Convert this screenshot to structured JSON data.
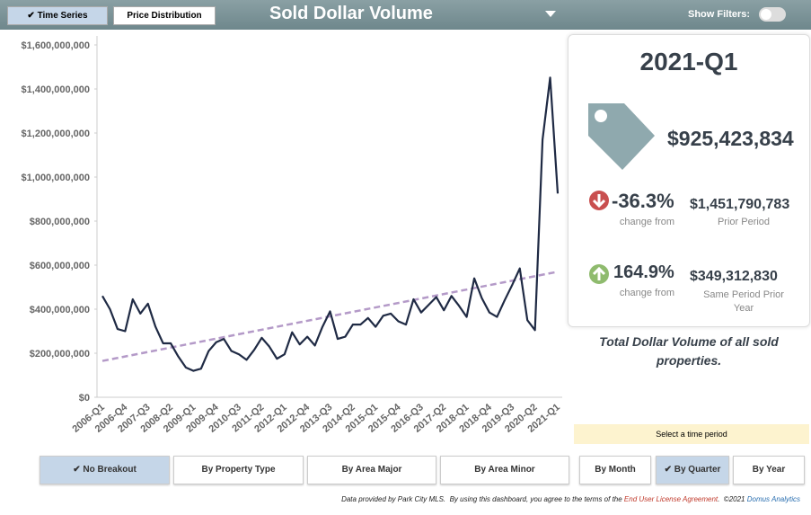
{
  "header": {
    "tabs": [
      "Time Series",
      "Price Distribution"
    ],
    "title": "Sold Dollar Volume",
    "filter_label": "Show Filters:"
  },
  "chart_data": {
    "type": "line",
    "categories": [
      "2006-Q1",
      null,
      null,
      "2006-Q4",
      null,
      null,
      "2007-Q3",
      null,
      null,
      "2008-Q2",
      null,
      null,
      "2009-Q1",
      null,
      null,
      "2009-Q4",
      null,
      null,
      "2010-Q3",
      null,
      null,
      "2011-Q2",
      null,
      null,
      "2012-Q1",
      null,
      null,
      "2012-Q4",
      null,
      null,
      "2013-Q3",
      null,
      null,
      "2014-Q2",
      null,
      null,
      "2015-Q1",
      null,
      null,
      "2015-Q4",
      null,
      null,
      "2016-Q3",
      null,
      null,
      "2017-Q2",
      null,
      null,
      "2018-Q1",
      null,
      null,
      "2018-Q4",
      null,
      null,
      "2019-Q3",
      null,
      null,
      "2020-Q2",
      null,
      null,
      "2021-Q1"
    ],
    "series": [
      {
        "color": "#1f2a44",
        "values": [
          460000000,
          400000000,
          310000000,
          300000000,
          445000000,
          380000000,
          425000000,
          320000000,
          245000000,
          245000000,
          185000000,
          135000000,
          120000000,
          130000000,
          210000000,
          250000000,
          265000000,
          210000000,
          195000000,
          170000000,
          215000000,
          270000000,
          230000000,
          175000000,
          195000000,
          295000000,
          240000000,
          275000000,
          235000000,
          320000000,
          390000000,
          265000000,
          275000000,
          330000000,
          330000000,
          360000000,
          320000000,
          370000000,
          380000000,
          345000000,
          330000000,
          445000000,
          385000000,
          420000000,
          455000000,
          395000000,
          460000000,
          415000000,
          365000000,
          540000000,
          450000000,
          385000000,
          365000000,
          440000000,
          510000000,
          585000000,
          350000000,
          305000000,
          1170000000,
          1451790783,
          925423834
        ]
      }
    ],
    "trend": {
      "color": "#b49ac8",
      "start": 165000000,
      "end": 570000000
    },
    "ylim": [
      0,
      1600000000
    ],
    "yticks": [
      {
        "value": 0,
        "label": "$0"
      },
      {
        "value": 200000000,
        "label": "$200,000,000"
      },
      {
        "value": 400000000,
        "label": "$400,000,000"
      },
      {
        "value": 600000000,
        "label": "$600,000,000"
      },
      {
        "value": 800000000,
        "label": "$800,000,000"
      },
      {
        "value": 1000000000,
        "label": "$1,000,000,000"
      },
      {
        "value": 1200000000,
        "label": "$1,200,000,000"
      },
      {
        "value": 1400000000,
        "label": "$1,400,000,000"
      },
      {
        "value": 1600000000,
        "label": "$1,600,000,000"
      }
    ]
  },
  "summary": {
    "period": "2021-Q1",
    "value": "$925,423,834",
    "change1": "-36.3%",
    "change1_caption": "change from",
    "compare1": "$1,451,790,783",
    "compare1_caption": "Prior Period",
    "change2": "164.9%",
    "change2_caption": "change from",
    "compare2": "$349,312,830",
    "compare2_caption": "Same Period Prior Year",
    "description": "Total Dollar Volume of all sold properties."
  },
  "period_prompt": "Select a time period",
  "breakouts": [
    "No Breakout",
    "By Property Type",
    "By Area Major",
    "By Area Minor"
  ],
  "periods": [
    "By Month",
    "By Quarter",
    "By Year"
  ],
  "footer": {
    "text": "Data provided by Park City MLS.  By using this dashboard, you agree to the terms of the",
    "link": "End User License Agreement",
    "after": ".  ©2021",
    "brand": "Domus Analytics"
  }
}
